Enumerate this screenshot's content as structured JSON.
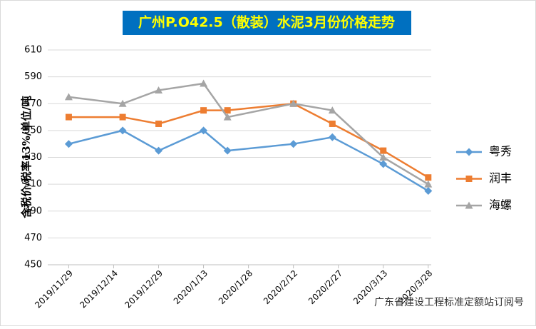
{
  "chart_data": {
    "type": "line",
    "title": "广州P.O42.5（散装）水泥3月份价格走势",
    "y_label": "含税价/税率13%/单位/吨",
    "x": [
      "2019/11/29",
      "2019/12/17",
      "2019/12/29",
      "2020/1/13",
      "2020/1/21",
      "2020/2/12",
      "2020/2/25",
      "2020/3/13",
      "2020/3/28"
    ],
    "xlim": [
      "2019/11/22",
      "2020/3/29"
    ],
    "xticks": [
      "2019/11/29",
      "2019/12/14",
      "2019/12/29",
      "2020/1/13",
      "2020/1/28",
      "2020/2/12",
      "2020/2/27",
      "2020/3/13",
      "2020/3/28"
    ],
    "ylim": [
      450,
      610
    ],
    "yticks": [
      450,
      470,
      490,
      510,
      530,
      550,
      570,
      590,
      610
    ],
    "grid": true,
    "legend": "right",
    "series": [
      {
        "name": "粤秀",
        "color": "#5b9bd5",
        "marker": "diamond",
        "values": [
          540,
          550,
          535,
          550,
          535,
          540,
          545,
          525,
          505
        ]
      },
      {
        "name": "润丰",
        "color": "#ed7d31",
        "marker": "square",
        "values": [
          560,
          560,
          555,
          565,
          565,
          570,
          555,
          535,
          515
        ]
      },
      {
        "name": "海螺",
        "color": "#a5a5a5",
        "marker": "triangle",
        "values": [
          575,
          570,
          580,
          585,
          560,
          570,
          565,
          530,
          510
        ]
      }
    ],
    "watermark": "广东省建设工程标准定额站订阅号"
  }
}
